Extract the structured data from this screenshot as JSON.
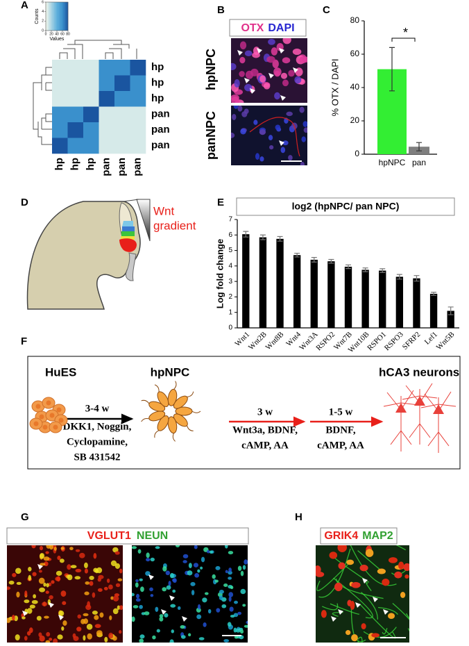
{
  "panel_labels": [
    "A",
    "B",
    "C",
    "D",
    "E",
    "F",
    "G",
    "H"
  ],
  "chart_data": [
    {
      "type": "heatmap",
      "row_labels": [
        "hp",
        "hp",
        "hp",
        "pan",
        "pan",
        "pan"
      ],
      "col_labels": [
        "hp",
        "hp",
        "hp",
        "pan",
        "pan",
        "pan"
      ],
      "values": [
        [
          8,
          8,
          8,
          60,
          60,
          80
        ],
        [
          8,
          8,
          8,
          60,
          80,
          60
        ],
        [
          8,
          8,
          8,
          80,
          60,
          60
        ],
        [
          60,
          60,
          80,
          8,
          8,
          8
        ],
        [
          60,
          80,
          60,
          8,
          8,
          8
        ],
        [
          80,
          60,
          60,
          8,
          8,
          8
        ]
      ],
      "color_key": {
        "xlabel": "Values",
        "ylabel": "Counts",
        "xlim": [
          0,
          80
        ],
        "xticks": [
          0,
          20,
          40,
          60,
          80
        ],
        "ylim": [
          0,
          6
        ],
        "yticks": [
          0,
          2,
          4,
          6
        ]
      }
    },
    {
      "type": "bar",
      "ylabel": "% OTX / DAPI",
      "categories": [
        "hpNPC",
        "pan"
      ],
      "values": [
        51,
        4.5
      ],
      "errors": [
        13,
        2.5
      ],
      "colors": [
        "#33ee33",
        "#7f7f7f"
      ],
      "annotation": "*",
      "ylim": [
        0,
        80
      ],
      "yticks": [
        0,
        20,
        40,
        60,
        80
      ]
    },
    {
      "type": "bar",
      "title": "log2 (hpNPC/ pan NPC)",
      "ylabel": "Log fold change",
      "categories": [
        "Wnt1",
        "Wnt2B",
        "Wnt8B",
        "Wnt4",
        "Wnt3A",
        "RSPO2",
        "Wnt7B",
        "Wnt10B",
        "RSPO1",
        "RSPO3",
        "SFRP2",
        "Lef1",
        "Wnt5B"
      ],
      "values": [
        6.05,
        5.85,
        5.75,
        4.7,
        4.4,
        4.3,
        3.95,
        3.75,
        3.7,
        3.3,
        3.2,
        2.2,
        1.1
      ],
      "errors": [
        0.18,
        0.15,
        0.15,
        0.12,
        0.15,
        0.12,
        0.12,
        0.12,
        0.12,
        0.15,
        0.18,
        0.1,
        0.25
      ],
      "colors": [
        "#000000"
      ],
      "ylim": [
        0,
        7
      ],
      "yticks": [
        0,
        1,
        2,
        3,
        4,
        5,
        6,
        7
      ]
    }
  ],
  "panel_b": {
    "legend": [
      "OTX",
      "DAPI"
    ],
    "rows": [
      "hpNPC",
      "panNPC"
    ]
  },
  "panel_d": {
    "label": [
      "Wnt",
      "gradient"
    ]
  },
  "panel_f": {
    "stages": [
      "HuES",
      "hpNPC",
      "hCA3 neurons"
    ],
    "transitions": [
      {
        "duration": "3-4 w",
        "conditions": [
          "DKK1, Noggin,",
          "Cyclopamine,",
          "SB 431542"
        ]
      },
      {
        "duration": "3 w",
        "conditions": [
          "Wnt3a, BDNF,",
          "cAMP, AA"
        ]
      },
      {
        "duration": "1-5 w",
        "conditions": [
          "BDNF,",
          "cAMP, AA"
        ]
      }
    ]
  },
  "panel_g": {
    "legend": [
      "VGLUT1",
      "NEUN"
    ]
  },
  "panel_h": {
    "legend": [
      "GRIK4",
      "MAP2"
    ]
  }
}
